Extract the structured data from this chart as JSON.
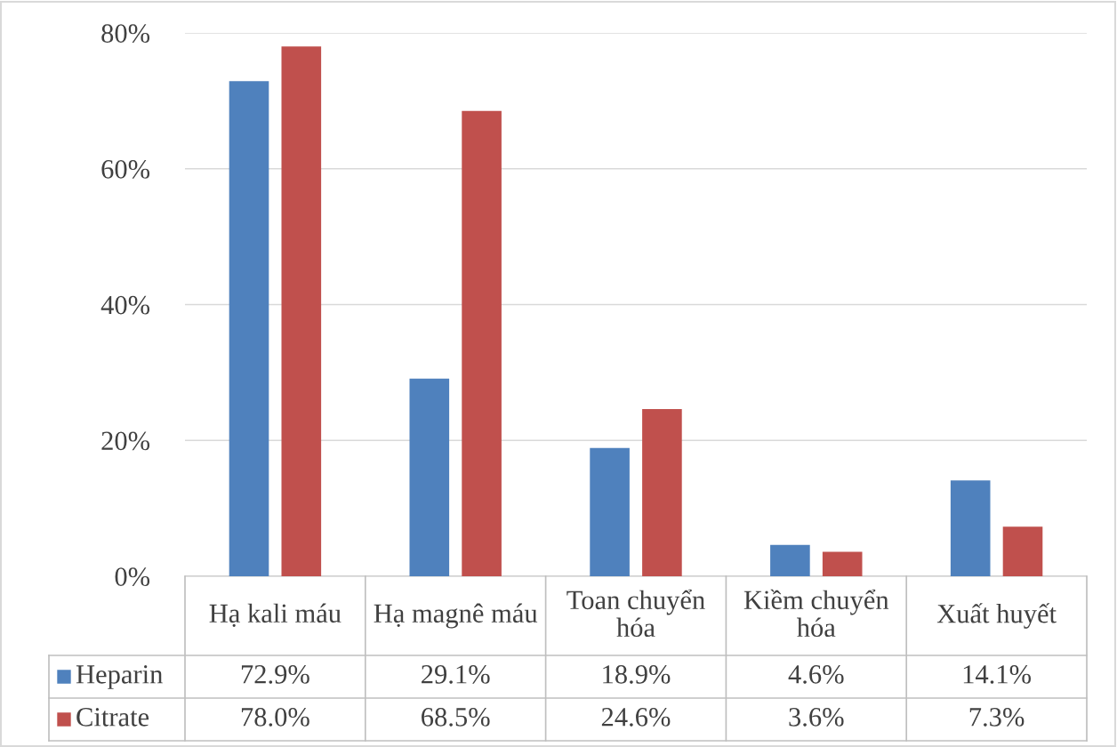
{
  "chart_data": {
    "type": "bar",
    "categories": [
      "Hạ kali máu",
      "Hạ magnê máu",
      "Toan chuyển hóa",
      "Kiềm chuyển hóa",
      "Xuất huyết"
    ],
    "series": [
      {
        "name": "Heparin",
        "color": "#4f81bd",
        "values": [
          72.9,
          29.1,
          18.9,
          4.6,
          14.1
        ],
        "value_labels": [
          "72.9%",
          "29.1%",
          "18.9%",
          "4.6%",
          "14.1%"
        ]
      },
      {
        "name": "Citrate",
        "color": "#c0504d",
        "values": [
          78.0,
          68.5,
          24.6,
          3.6,
          7.3
        ],
        "value_labels": [
          "78.0%",
          "68.5%",
          "24.6%",
          "3.6%",
          "7.3%"
        ]
      }
    ],
    "ylim": [
      0,
      80
    ],
    "yticks": [
      {
        "value": 0,
        "label": "0%"
      },
      {
        "value": 20,
        "label": "20%"
      },
      {
        "value": 40,
        "label": "40%"
      },
      {
        "value": 60,
        "label": "60%"
      },
      {
        "value": 80,
        "label": "80%"
      }
    ],
    "grid": "y",
    "legend": "bottom"
  }
}
